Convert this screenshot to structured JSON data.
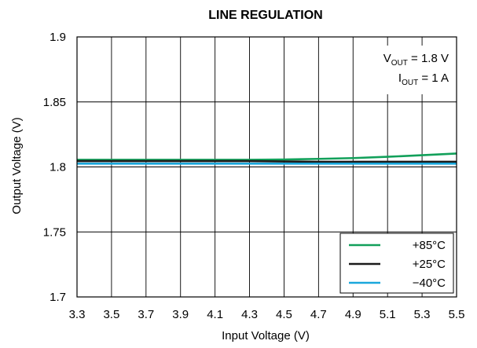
{
  "chart_data": {
    "type": "line",
    "title": "LINE REGULATION",
    "xlabel": "Input Voltage (V)",
    "ylabel": "Output Voltage (V)",
    "xlim": [
      3.3,
      5.5
    ],
    "ylim": [
      1.7,
      1.9
    ],
    "xticks": [
      "3.3",
      "3.5",
      "3.7",
      "3.9",
      "4.1",
      "4.3",
      "4.5",
      "4.7",
      "4.9",
      "5.1",
      "5.3",
      "5.5"
    ],
    "yticks": [
      "1.7",
      "1.75",
      "1.8",
      "1.85",
      "1.9"
    ],
    "grid": true,
    "legend_position": "bottom-right",
    "annotations": {
      "vout_prefix": "V",
      "vout_sub": "OUT",
      "vout_value": " = 1.8 V",
      "iout_prefix": "I",
      "iout_sub": "OUT",
      "iout_value": " = 1 A"
    },
    "series": [
      {
        "name": "+85°C",
        "color": "#12a05a",
        "x": [
          3.3,
          3.5,
          3.7,
          3.9,
          4.1,
          4.3,
          4.5,
          4.7,
          4.9,
          5.1,
          5.3,
          5.5
        ],
        "y": [
          1.8055,
          1.8055,
          1.8055,
          1.8055,
          1.8055,
          1.8055,
          1.8057,
          1.8062,
          1.8068,
          1.8078,
          1.809,
          1.8103
        ]
      },
      {
        "name": "+25°C",
        "color": "#1a1a1a",
        "x": [
          3.3,
          3.5,
          3.7,
          3.9,
          4.1,
          4.3,
          4.5,
          4.7,
          4.9,
          5.1,
          5.3,
          5.5
        ],
        "y": [
          1.8045,
          1.8045,
          1.8045,
          1.8045,
          1.8045,
          1.8045,
          1.8042,
          1.804,
          1.804,
          1.804,
          1.804,
          1.804
        ]
      },
      {
        "name": "−40°C",
        "color": "#1aa7dc",
        "x": [
          3.3,
          3.5,
          3.7,
          3.9,
          4.1,
          4.3,
          4.5,
          4.7,
          4.9,
          5.1,
          5.3,
          5.5
        ],
        "y": [
          1.8025,
          1.8025,
          1.8025,
          1.8025,
          1.8025,
          1.8025,
          1.8025,
          1.8025,
          1.8025,
          1.8025,
          1.8025,
          1.8025
        ]
      }
    ]
  }
}
